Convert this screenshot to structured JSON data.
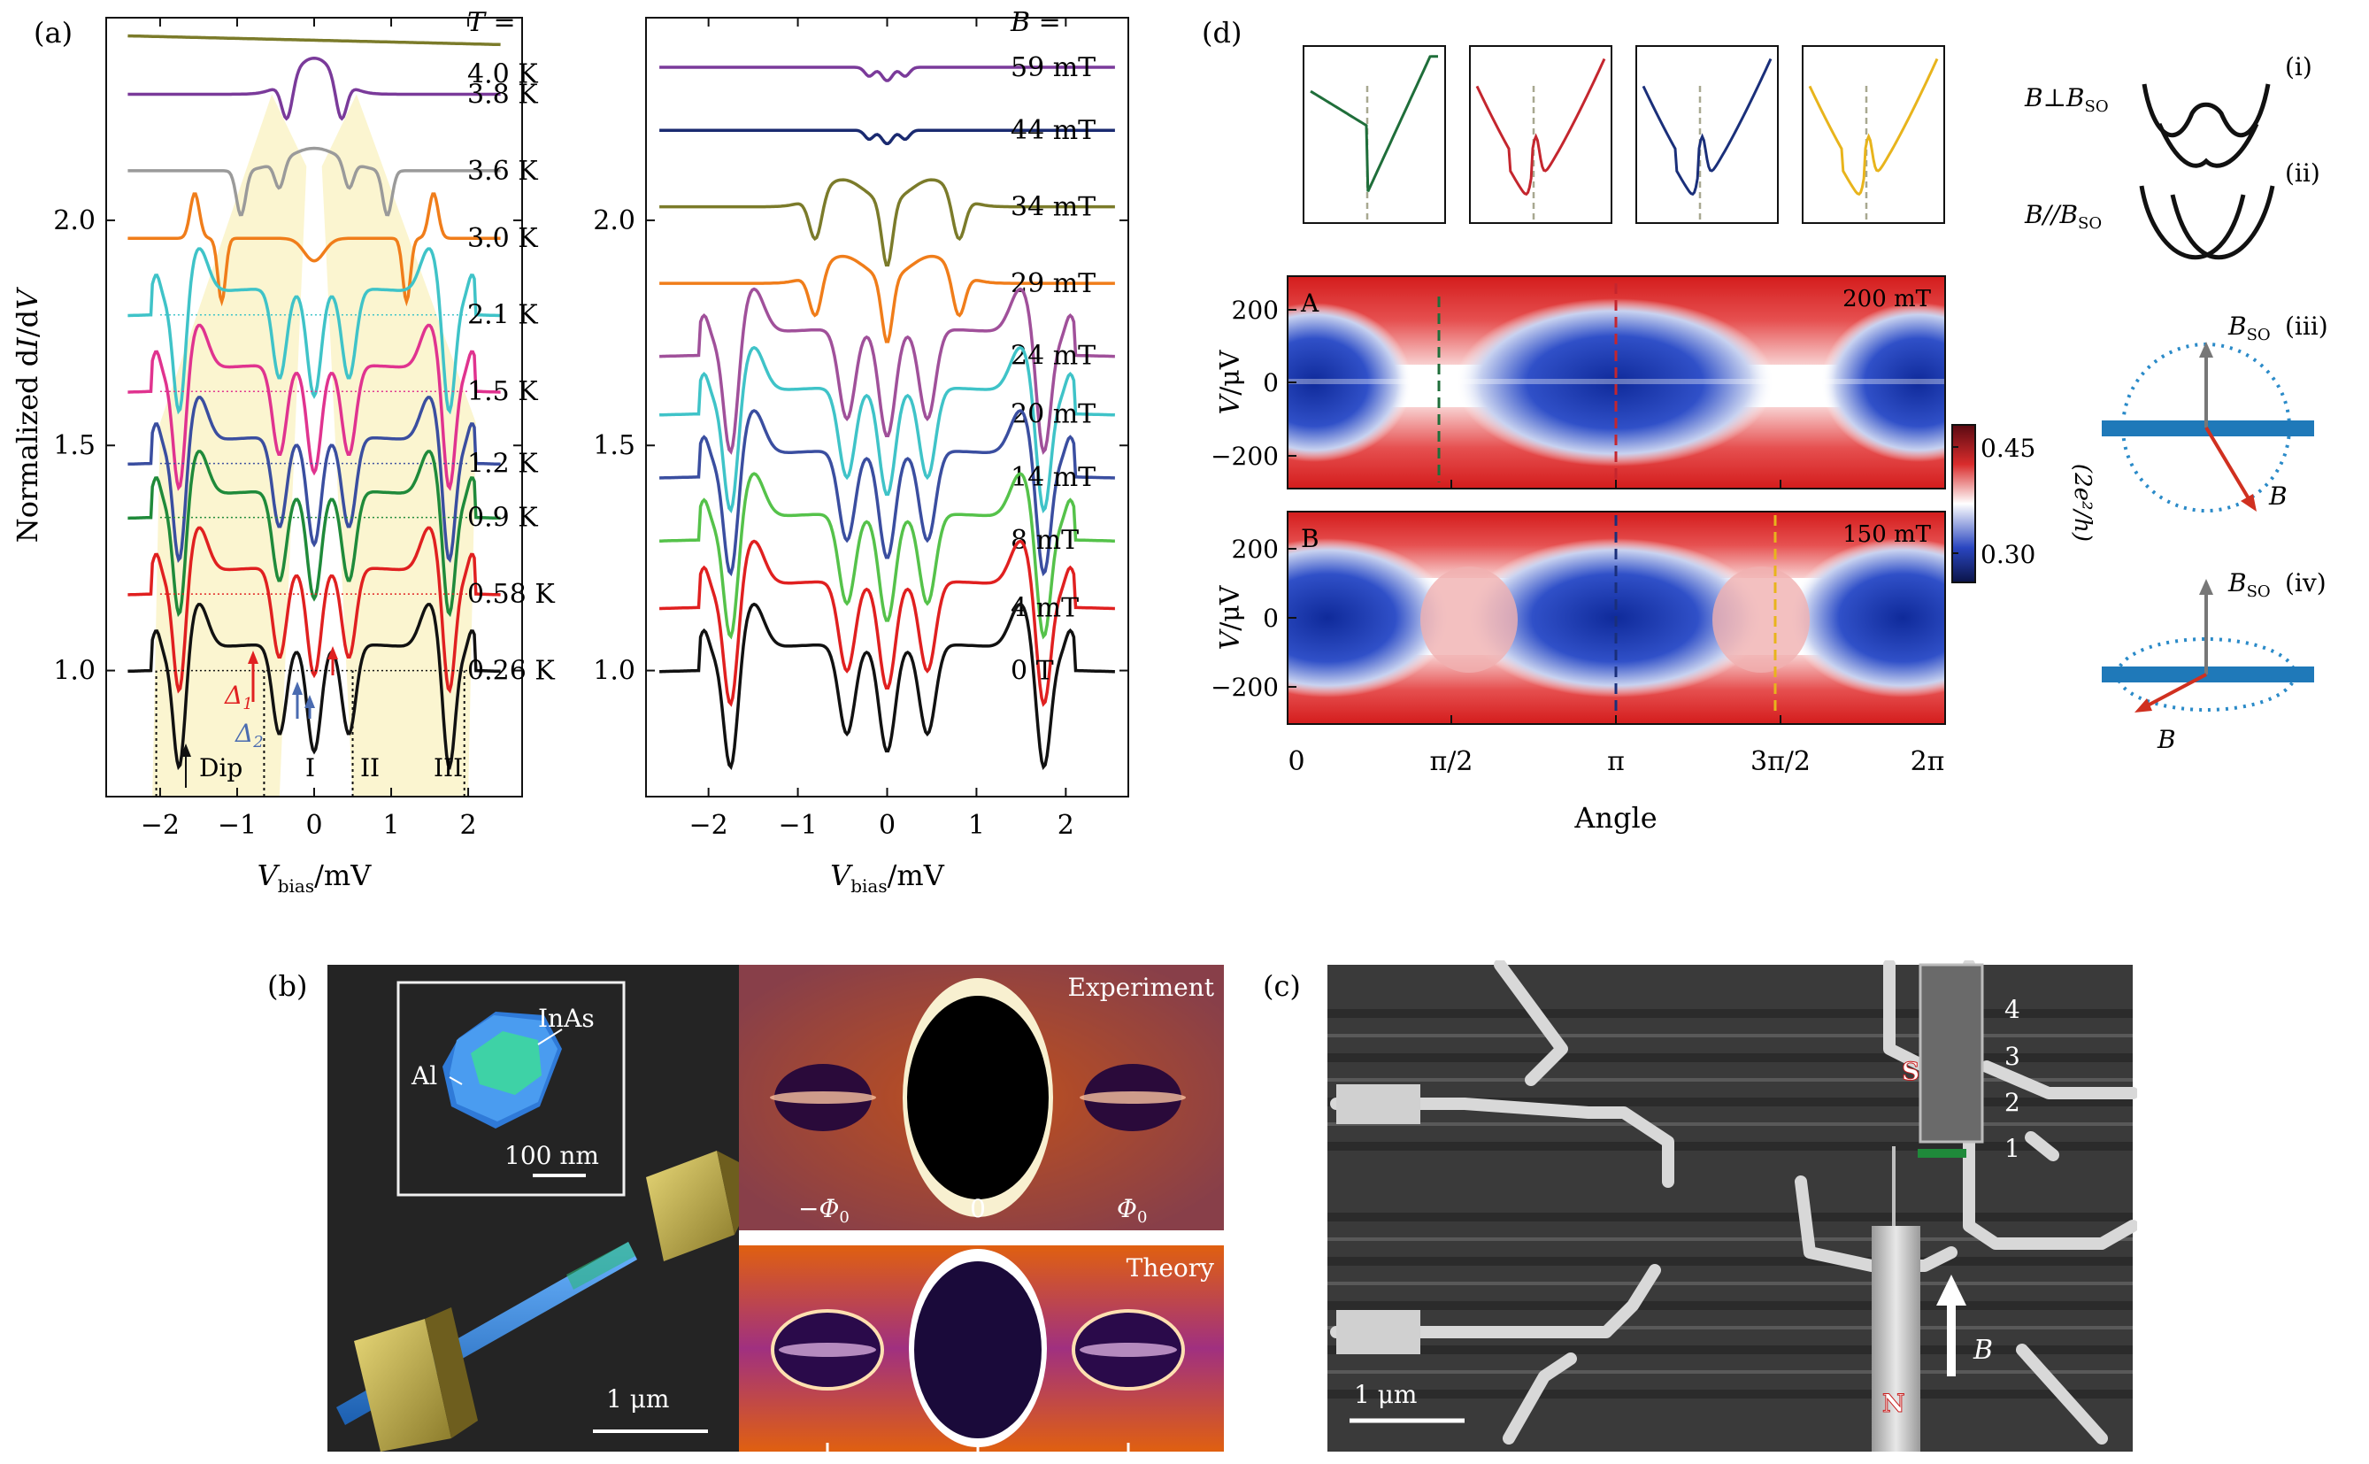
{
  "colors": {
    "olive": "#7b7b2a",
    "purple": "#7a3a9a",
    "gray": "#9a9a9a",
    "orange": "#f07d1a",
    "cyan": "#3fc3c8",
    "pink": "#e0338f",
    "blue": "#3a4ea0",
    "green": "#1f8a3a",
    "red": "#e02020",
    "black": "#111111",
    "navy": "#1a2a70",
    "magenta": "#a0509a",
    "lightgreen": "#55c24a",
    "shade": "#fbf5d0",
    "rod": "#1f79b9"
  },
  "panel_a": {
    "label": "(a)",
    "chart_data": [
      {
        "type": "line",
        "title": "",
        "xlabel": "V_bias/mV",
        "ylabel": "Normalized dI/dV",
        "xlim": [
          -2.7,
          2.7
        ],
        "ylim": [
          0.72,
          2.45
        ],
        "xticks": [
          "−2",
          "−1",
          "0",
          "1",
          "2"
        ],
        "yticks": [
          "1.0",
          "1.5",
          "2.0"
        ],
        "legend_header": "T =",
        "series": [
          {
            "name": "4.0 K",
            "offset": 2.4,
            "shape": "flat",
            "color": "olive"
          },
          {
            "name": "3.8 K",
            "offset": 2.28,
            "shape": "peak",
            "color": "purple"
          },
          {
            "name": "3.6 K",
            "offset": 2.11,
            "shape": "peak2",
            "color": "gray"
          },
          {
            "name": "3.0 K",
            "offset": 1.96,
            "shape": "dip3",
            "color": "orange"
          },
          {
            "name": "2.1 K",
            "offset": 1.79,
            "shape": "sc",
            "color": "cyan"
          },
          {
            "name": "1.5 K",
            "offset": 1.62,
            "shape": "sc",
            "color": "pink"
          },
          {
            "name": "1.2 K",
            "offset": 1.46,
            "shape": "sc",
            "color": "blue"
          },
          {
            "name": "0.9 K",
            "offset": 1.34,
            "shape": "sc",
            "color": "green"
          },
          {
            "name": "0.58 K",
            "offset": 1.17,
            "shape": "sc",
            "color": "red"
          },
          {
            "name": "0.26 K",
            "offset": 1.0,
            "shape": "sc",
            "color": "black"
          }
        ],
        "annotations": {
          "delta1": "Δ",
          "delta1_sub": "1",
          "delta2": "Δ",
          "delta2_sub": "2",
          "dip": "Dip",
          "region1": "I",
          "region2": "II",
          "region3": "III"
        }
      },
      {
        "type": "line",
        "xlabel": "V_bias/mV",
        "xlim": [
          -2.7,
          2.7
        ],
        "ylim": [
          0.72,
          2.45
        ],
        "xticks": [
          "−2",
          "−1",
          "0",
          "1",
          "2"
        ],
        "yticks": [
          "1.0",
          "1.5",
          "2.0"
        ],
        "legend_header": "B =",
        "series": [
          {
            "name": "59 mT",
            "offset": 2.34,
            "shape": "flatdip",
            "color": "purple"
          },
          {
            "name": "44 mT",
            "offset": 2.2,
            "shape": "flatdip",
            "color": "navy"
          },
          {
            "name": "34 mT",
            "offset": 2.03,
            "shape": "dip",
            "color": "olive"
          },
          {
            "name": "29 mT",
            "offset": 1.86,
            "shape": "dip",
            "color": "orange"
          },
          {
            "name": "24 mT",
            "offset": 1.7,
            "shape": "sc",
            "color": "magenta"
          },
          {
            "name": "20 mT",
            "offset": 1.57,
            "shape": "sc",
            "color": "cyan"
          },
          {
            "name": "14 mT",
            "offset": 1.43,
            "shape": "sc",
            "color": "blue"
          },
          {
            "name": "8 mT",
            "offset": 1.29,
            "shape": "sc",
            "color": "lightgreen"
          },
          {
            "name": "4 mT",
            "offset": 1.14,
            "shape": "sc",
            "color": "red"
          },
          {
            "name": "0 T",
            "offset": 1.0,
            "shape": "sc",
            "color": "black"
          }
        ]
      }
    ]
  },
  "panel_b": {
    "label": "(b)",
    "inas": "InAs",
    "al": "Al",
    "scale_inset": "100 nm",
    "scale_main": "1 μm",
    "experiment": "Experiment",
    "theory": "Theory",
    "flux_minus": "−Φ",
    "flux_zero": "0",
    "flux_plus": "Φ",
    "flux_sub": "0"
  },
  "panel_c": {
    "label": "(c)",
    "s": "S",
    "n": "N",
    "numbers": [
      "4",
      "3",
      "2",
      "1"
    ],
    "b": "B",
    "scale": "1 μm"
  },
  "panel_d": {
    "label": "(d)",
    "chart_data": {
      "type": "heatmap",
      "xlabel": "Angle",
      "ylabel": "V/μV",
      "xticks": [
        "0",
        "π/2",
        "π",
        "3π/2",
        "2π"
      ],
      "yticks": [
        "200",
        "0",
        "−200"
      ],
      "maps": [
        {
          "name": "A",
          "field": "200 mT"
        },
        {
          "name": "B",
          "field": "150 mT"
        }
      ],
      "colorbar": {
        "max": "0.45",
        "min": "0.30",
        "label": "(2e²/h)"
      },
      "cuts": [
        {
          "color": "#1f6e3a"
        },
        {
          "color": "#c4262e"
        },
        {
          "color": "#1a2f7a"
        },
        {
          "color": "#e8b41c"
        }
      ]
    },
    "schematic": {
      "i": "(i)",
      "ii": "(ii)",
      "iii": "(iii)",
      "iv": "(iv)",
      "perp": "B⊥B",
      "par": "B//B",
      "so": "SO",
      "bso": "B",
      "b": "B"
    }
  }
}
